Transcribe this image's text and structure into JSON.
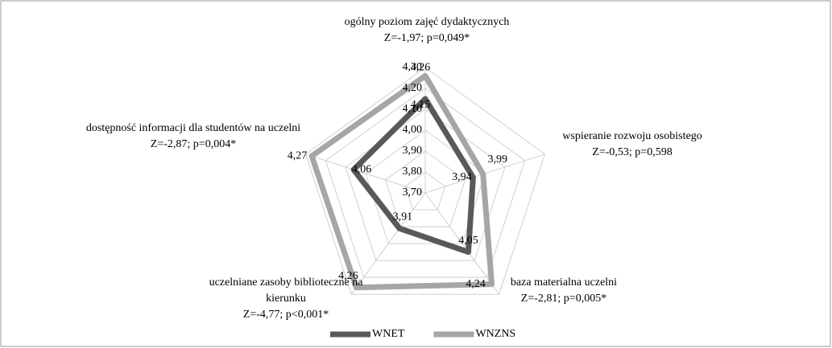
{
  "chart_data": {
    "type": "radar",
    "categories": [
      "ogólny poziom zajęć dydaktycznych",
      "wspieranie rozwoju osobistego",
      "baza materialna uczelni",
      "uczelniane zasoby biblioteczne na kierunku",
      "dostępność informacji dla studentów na uczelni"
    ],
    "annotations": [
      "Z=-1,97; p=0,049*",
      "Z=-0,53; p=0,598",
      "Z=-2,81; p=0,005*",
      "Z=-4,77; p<0,001*",
      "Z=-2,87; p=0,004*"
    ],
    "series": [
      {
        "name": "WNET",
        "color": "#595959",
        "values": [
          4.15,
          3.94,
          4.05,
          3.91,
          4.06
        ],
        "value_labels": [
          "4,15",
          "3,94",
          "4,05",
          "3,91",
          "4,06"
        ]
      },
      {
        "name": "WNZNS",
        "color": "#a6a6a6",
        "values": [
          4.26,
          3.99,
          4.24,
          4.26,
          4.27
        ],
        "value_labels": [
          "4,26",
          "3,99",
          "4,24",
          "4,26",
          "4,27"
        ]
      }
    ],
    "ylim": [
      3.7,
      4.3
    ],
    "yticks": [
      {
        "value": 3.7,
        "label": "3,70"
      },
      {
        "value": 3.8,
        "label": "3,80"
      },
      {
        "value": 3.9,
        "label": "3,90"
      },
      {
        "value": 4.0,
        "label": "4,00"
      },
      {
        "value": 4.1,
        "label": "4,10"
      },
      {
        "value": 4.2,
        "label": "4,20"
      },
      {
        "value": 4.3,
        "label": "4,30"
      }
    ],
    "grid": true,
    "legend": "bottom"
  }
}
